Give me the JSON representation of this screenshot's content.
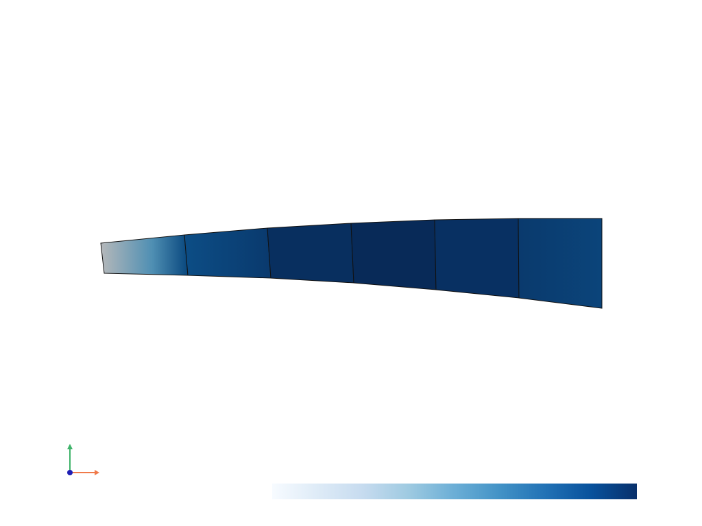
{
  "scene": {
    "background": "#ffffff",
    "mesh_edge_color": "#111111",
    "element_count": 6
  },
  "colormap": {
    "name": "Blues",
    "stops": [
      "#f7fbff",
      "#deebf7",
      "#c6dbef",
      "#9ecae1",
      "#6baed6",
      "#4292c6",
      "#2171b5",
      "#08519c",
      "#08306b"
    ]
  },
  "element_colors": {
    "tip_start": "#b5b8ba",
    "tip_mid": "#4f8fb3",
    "tip_end": "#0b4a80",
    "e2_start": "#0c4d85",
    "e2_end": "#0a3a6e",
    "e3": "#082f5f",
    "e4": "#082a58",
    "e5": "#083062",
    "e6_start": "#0a3a6d",
    "e6_end": "#0b447a"
  },
  "axes_triad": {
    "x_color": "#f07a4a",
    "y_color": "#3fb36a",
    "z_color": "#1f1fb4"
  }
}
